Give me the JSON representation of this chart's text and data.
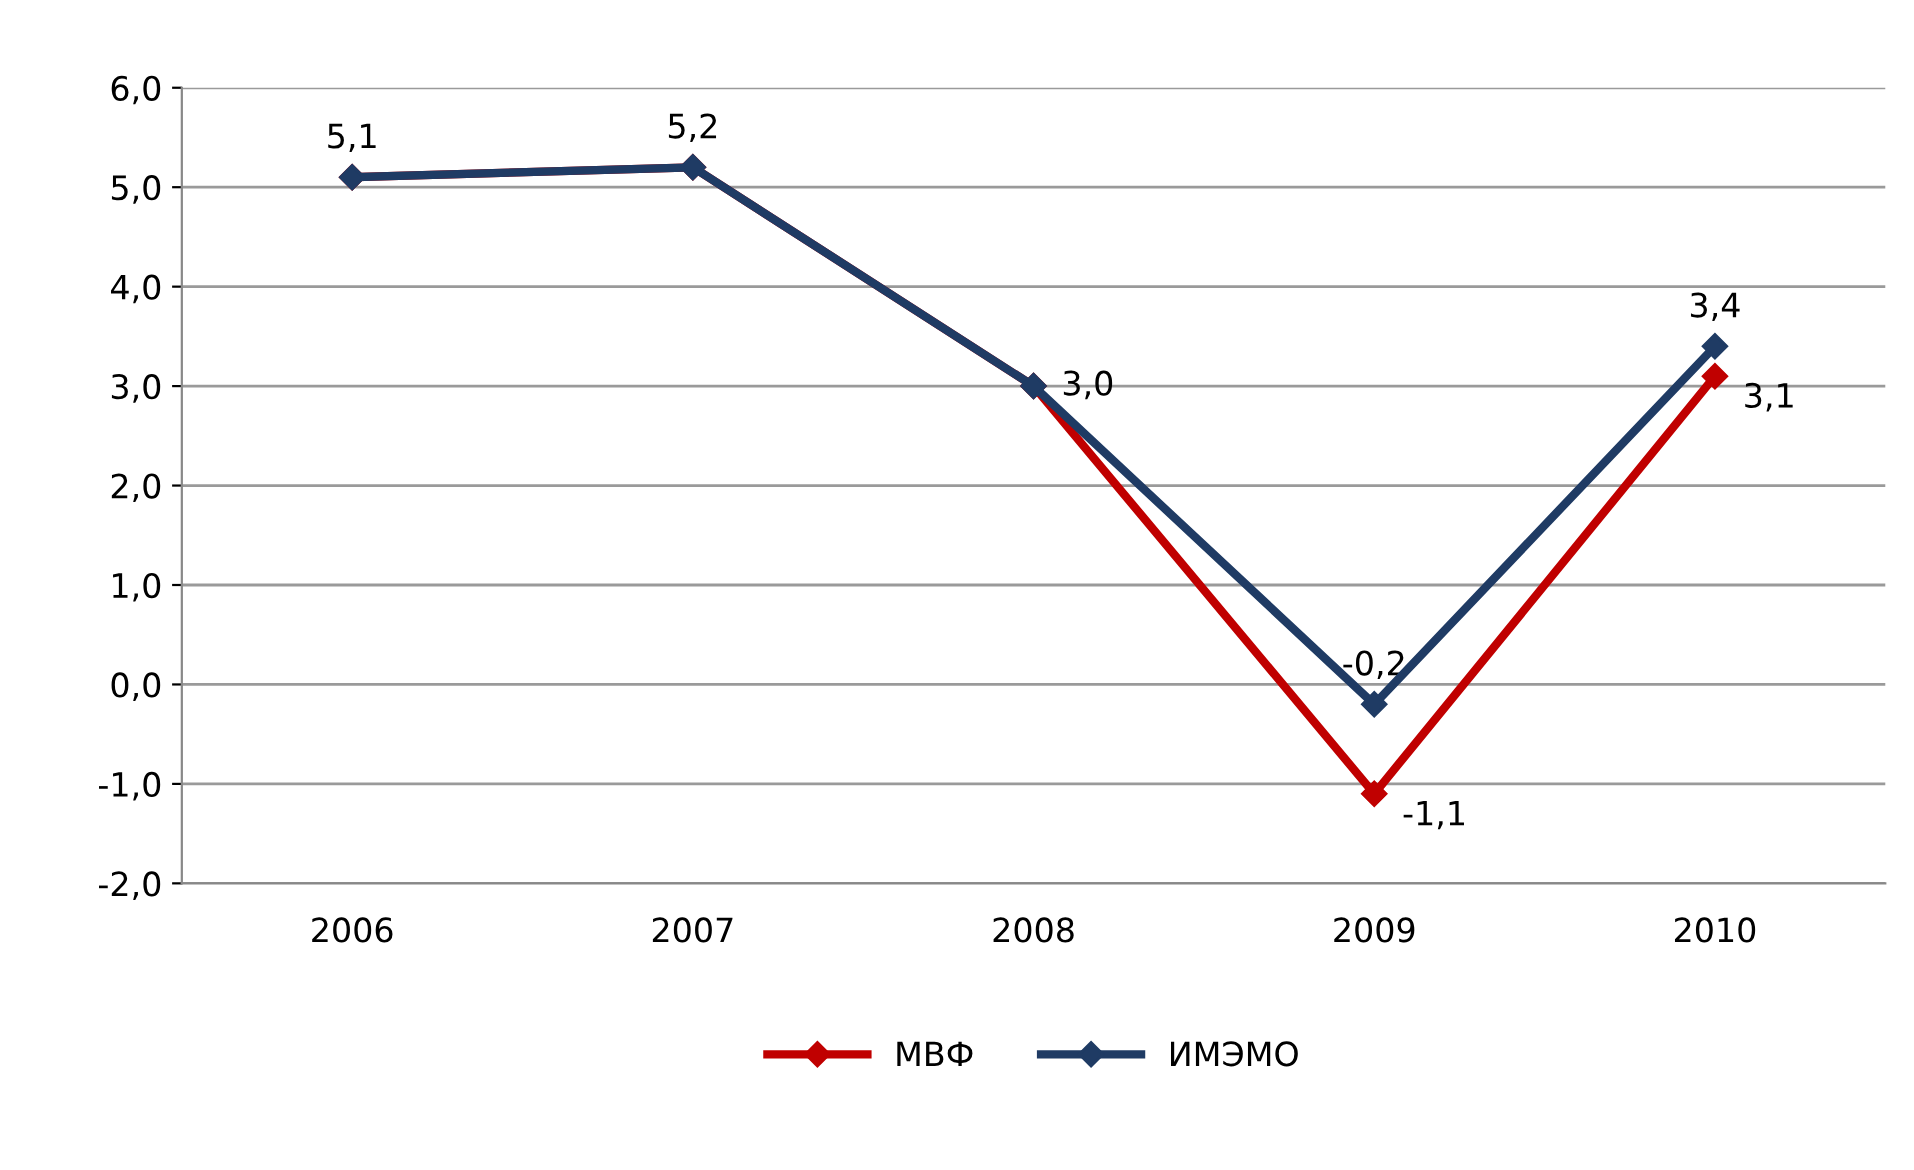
{
  "chart_data": {
    "type": "line",
    "categories": [
      "2006",
      "2007",
      "2008",
      "2009",
      "2010"
    ],
    "series": [
      {
        "name": "МВФ",
        "color": "#c00000",
        "values": [
          5.1,
          5.2,
          3.0,
          -1.1,
          3.1
        ],
        "value_labels": [
          null,
          null,
          null,
          "-1,1",
          "3,1"
        ]
      },
      {
        "name": "ИМЭМО",
        "color": "#1f3b64",
        "values": [
          5.1,
          5.2,
          3.0,
          -0.2,
          3.4
        ],
        "value_labels": [
          "5,1",
          "5,2",
          "3,0",
          "-0,2",
          "3,4"
        ]
      }
    ],
    "ylim": [
      -2,
      6
    ],
    "yticks": [
      {
        "value": -2,
        "label": "-2,0"
      },
      {
        "value": -1,
        "label": "-1,0"
      },
      {
        "value": 0,
        "label": "0,0"
      },
      {
        "value": 1,
        "label": "1,0"
      },
      {
        "value": 2,
        "label": "2,0"
      },
      {
        "value": 3,
        "label": "3,0"
      },
      {
        "value": 4,
        "label": "4,0"
      },
      {
        "value": 5,
        "label": "5,0"
      },
      {
        "value": 6,
        "label": "6,0"
      }
    ],
    "grid": "y",
    "legend": "bottom",
    "marker": "diamond",
    "line_style": "solid"
  }
}
